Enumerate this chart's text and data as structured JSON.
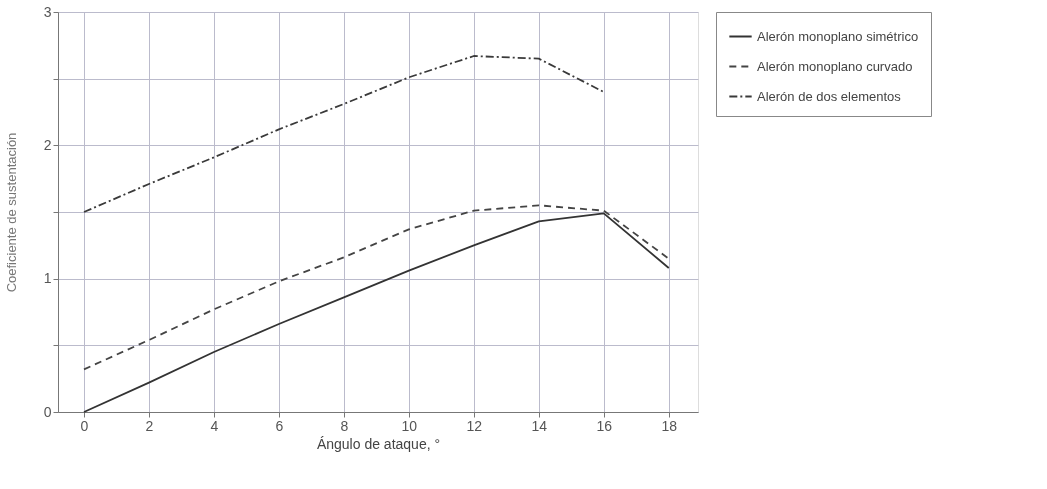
{
  "chart_data": {
    "type": "line",
    "xlabel": "Ángulo de ataque, °",
    "ylabel": "Coeficiente de sustentación",
    "x": [
      0,
      2,
      4,
      6,
      8,
      10,
      12,
      14,
      16,
      18
    ],
    "xlim": [
      -0.8,
      18.9
    ],
    "xticks": [
      0,
      2,
      4,
      6,
      8,
      10,
      12,
      14,
      16,
      18
    ],
    "ylim": [
      0,
      3
    ],
    "yticks": [
      0,
      {
        "value": 0.5,
        "label": null
      },
      1,
      {
        "value": 1.5,
        "label": null
      },
      2,
      {
        "value": 2.5,
        "label": null
      },
      3
    ],
    "grid": true,
    "legend": "right",
    "marker": "none",
    "series": [
      {
        "name": "Alerón monoplano simétrico",
        "color": "#333333",
        "line_style": "solid",
        "values": [
          0,
          0.22,
          0.45,
          0.66,
          0.86,
          1.06,
          1.25,
          1.43,
          1.49,
          1.08
        ]
      },
      {
        "name": "Alerón monoplano curvado",
        "color": "#444444",
        "line_style": "dashed",
        "values": [
          0.32,
          0.54,
          0.77,
          0.98,
          1.16,
          1.37,
          1.51,
          1.55,
          1.51,
          1.15
        ]
      },
      {
        "name": "Alerón de dos elementos",
        "color": "#3a3a3a",
        "line_style": "dashdot",
        "values": [
          1.5,
          1.71,
          1.91,
          2.12,
          2.31,
          2.51,
          2.67,
          2.65,
          2.4,
          null
        ]
      }
    ]
  }
}
